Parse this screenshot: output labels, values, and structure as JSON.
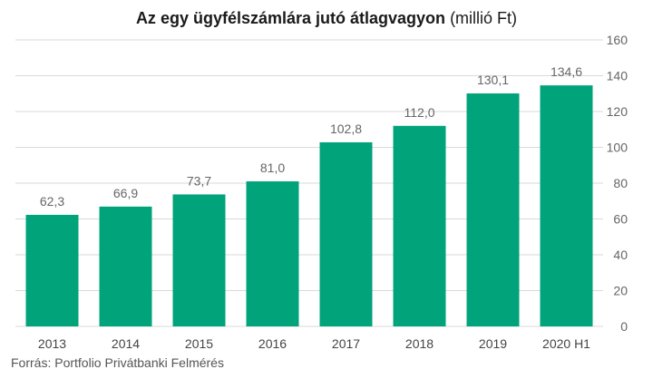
{
  "chart_data": {
    "type": "bar",
    "title_bold": "Az egy ügyfélszámlára jutó átlagvagyon",
    "title_unit": "(millió Ft)",
    "categories": [
      "2013",
      "2014",
      "2015",
      "2016",
      "2017",
      "2018",
      "2019",
      "2020 H1"
    ],
    "values": [
      62.3,
      66.9,
      73.7,
      81.0,
      102.8,
      112.0,
      130.1,
      134.6
    ],
    "value_labels": [
      "62,3",
      "66,9",
      "73,7",
      "81,0",
      "102,8",
      "112,0",
      "130,1",
      "134,6"
    ],
    "y_ticks": [
      0,
      20,
      40,
      60,
      80,
      100,
      120,
      140,
      160
    ],
    "ylim": [
      0,
      160
    ],
    "y_axis_side": "right",
    "grid": true,
    "bar_color": "#00a37a",
    "grid_color": "#d9d9d9",
    "label_color": "#666666"
  },
  "source": "Forrás:  Portfolio Privátbanki Felmérés"
}
